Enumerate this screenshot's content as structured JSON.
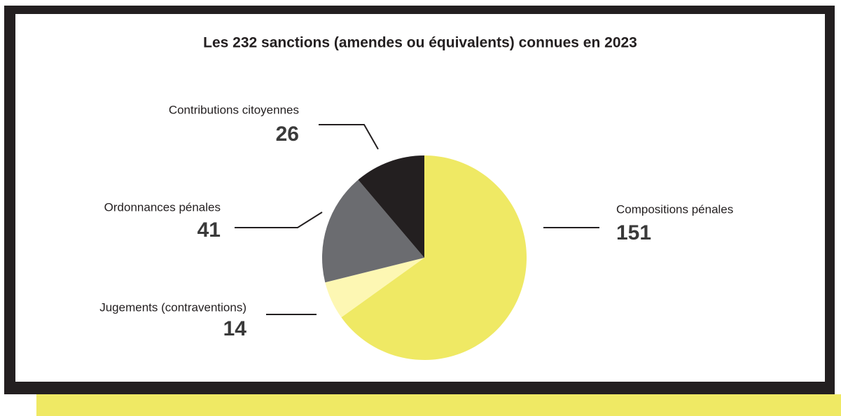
{
  "chart_data": {
    "type": "pie",
    "title": "Les 232 sanctions (amendes ou équivalents) connues en 2023",
    "categories": [
      "Compositions pénales",
      "Jugements (contraventions)",
      "Ordonnances  pénales",
      "Contributions citoyennes"
    ],
    "values": [
      151,
      14,
      41,
      26
    ],
    "colors": [
      "#efe964",
      "#fdf7b3",
      "#6b6c70",
      "#231f20"
    ]
  }
}
